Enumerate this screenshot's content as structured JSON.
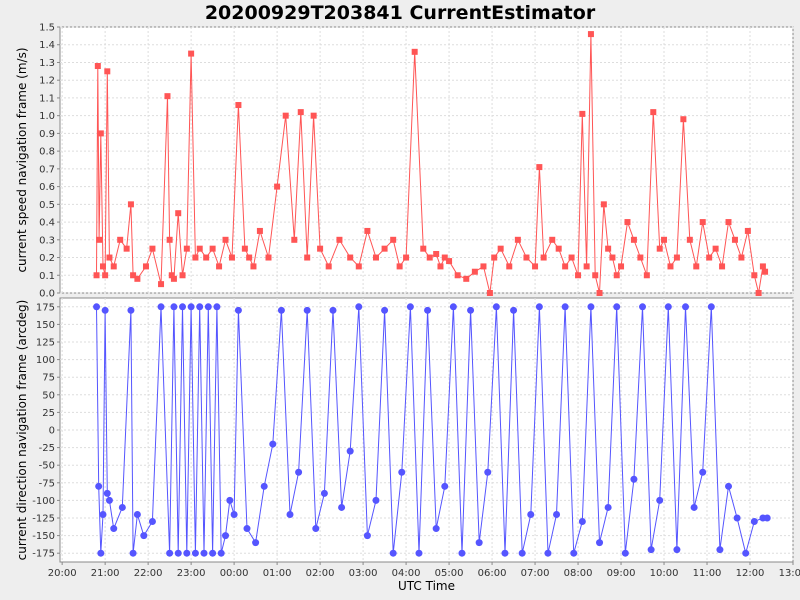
{
  "chart_data": {
    "title": "20200929T203841 CurrentEstimator",
    "type": "line",
    "xlabel": "UTC Time",
    "x_ticks": [
      "20:00",
      "21:00",
      "22:00",
      "23:00",
      "00:00",
      "01:00",
      "02:00",
      "03:00",
      "04:00",
      "05:00",
      "06:00",
      "07:00",
      "08:00",
      "09:00",
      "10:00",
      "11:00",
      "12:00",
      "13:00"
    ],
    "grid": true,
    "panels": [
      {
        "name": "speed",
        "ylabel": "current speed navigation frame (m/s)",
        "ylim": [
          0.0,
          1.5
        ],
        "y_ticks": [
          "0.0",
          "0.1",
          "0.2",
          "0.3",
          "0.4",
          "0.5",
          "0.6",
          "0.7",
          "0.8",
          "0.9",
          "1.0",
          "1.1",
          "1.2",
          "1.3",
          "1.4",
          "1.5"
        ],
        "color": "#ff5555",
        "marker": "square",
        "x_hours": [
          20.8,
          20.83,
          20.86,
          20.9,
          20.95,
          21.0,
          21.05,
          21.1,
          21.2,
          21.35,
          21.5,
          21.6,
          21.65,
          21.75,
          21.95,
          22.1,
          22.3,
          22.45,
          22.5,
          22.55,
          22.6,
          22.7,
          22.8,
          22.9,
          23.0,
          23.1,
          23.2,
          23.35,
          23.5,
          23.65,
          23.8,
          23.95,
          24.1,
          24.25,
          24.35,
          24.45,
          24.6,
          24.8,
          25.0,
          25.2,
          25.4,
          25.55,
          25.7,
          25.85,
          26.0,
          26.2,
          26.45,
          26.7,
          26.9,
          27.1,
          27.3,
          27.5,
          27.7,
          27.85,
          28.0,
          28.2,
          28.4,
          28.55,
          28.7,
          28.8,
          28.9,
          29.0,
          29.2,
          29.4,
          29.6,
          29.8,
          29.95,
          30.05,
          30.2,
          30.4,
          30.6,
          30.8,
          31.0,
          31.1,
          31.2,
          31.4,
          31.55,
          31.7,
          31.85,
          32.0,
          32.1,
          32.2,
          32.3,
          32.4,
          32.5,
          32.6,
          32.7,
          32.8,
          32.9,
          33.0,
          33.15,
          33.3,
          33.45,
          33.6,
          33.75,
          33.9,
          34.0,
          34.15,
          34.3,
          34.45,
          34.6,
          34.75,
          34.9,
          35.05,
          35.2,
          35.35,
          35.5,
          35.65,
          35.8,
          35.95,
          36.1,
          36.2,
          36.3,
          36.35
        ],
        "values": [
          0.1,
          1.28,
          0.3,
          0.9,
          0.15,
          0.1,
          1.25,
          0.2,
          0.15,
          0.3,
          0.25,
          0.5,
          0.1,
          0.08,
          0.15,
          0.25,
          0.05,
          1.11,
          0.3,
          0.1,
          0.08,
          0.45,
          0.1,
          0.25,
          1.35,
          0.2,
          0.25,
          0.2,
          0.25,
          0.15,
          0.3,
          0.2,
          1.06,
          0.25,
          0.2,
          0.15,
          0.35,
          0.2,
          0.6,
          1.0,
          0.3,
          1.02,
          0.2,
          1.0,
          0.25,
          0.15,
          0.3,
          0.2,
          0.15,
          0.35,
          0.2,
          0.25,
          0.3,
          0.15,
          0.2,
          1.36,
          0.25,
          0.2,
          0.22,
          0.15,
          0.2,
          0.18,
          0.1,
          0.08,
          0.12,
          0.15,
          0.0,
          0.2,
          0.25,
          0.15,
          0.3,
          0.2,
          0.15,
          0.71,
          0.2,
          0.3,
          0.25,
          0.15,
          0.2,
          0.1,
          1.01,
          0.15,
          1.46,
          0.1,
          0.0,
          0.5,
          0.25,
          0.2,
          0.1,
          0.15,
          0.4,
          0.3,
          0.2,
          0.1,
          1.02,
          0.25,
          0.3,
          0.15,
          0.2,
          0.98,
          0.3,
          0.15,
          0.4,
          0.2,
          0.25,
          0.15,
          0.4,
          0.3,
          0.2,
          0.35,
          0.1,
          0.0,
          0.15,
          0.12
        ]
      },
      {
        "name": "direction",
        "ylabel": "current direction navigation frame (arcdeg)",
        "ylim": [
          -187.5,
          187.5
        ],
        "y_ticks": [
          "-175",
          "-150",
          "-125",
          "-100",
          "-75",
          "-50",
          "-25",
          "0",
          "25",
          "50",
          "75",
          "100",
          "125",
          "150",
          "175"
        ],
        "color": "#5555ff",
        "marker": "circle",
        "x_hours": [
          20.8,
          20.85,
          20.9,
          20.95,
          21.0,
          21.05,
          21.1,
          21.2,
          21.4,
          21.6,
          21.65,
          21.75,
          21.9,
          22.1,
          22.3,
          22.5,
          22.6,
          22.7,
          22.8,
          22.9,
          23.0,
          23.1,
          23.2,
          23.3,
          23.4,
          23.5,
          23.6,
          23.7,
          23.8,
          23.9,
          24.0,
          24.1,
          24.3,
          24.5,
          24.7,
          24.9,
          25.1,
          25.3,
          25.5,
          25.7,
          25.9,
          26.1,
          26.3,
          26.5,
          26.7,
          26.9,
          27.1,
          27.3,
          27.5,
          27.7,
          27.9,
          28.1,
          28.3,
          28.5,
          28.7,
          28.9,
          29.1,
          29.3,
          29.5,
          29.7,
          29.9,
          30.1,
          30.3,
          30.5,
          30.7,
          30.9,
          31.1,
          31.3,
          31.5,
          31.7,
          31.9,
          32.1,
          32.3,
          32.5,
          32.7,
          32.9,
          33.1,
          33.3,
          33.5,
          33.7,
          33.9,
          34.1,
          34.3,
          34.5,
          34.7,
          34.9,
          35.1,
          35.3,
          35.5,
          35.7,
          35.9,
          36.1,
          36.3,
          36.4
        ],
        "values": [
          175,
          -80,
          -175,
          -120,
          170,
          -90,
          -100,
          -140,
          -110,
          170,
          -175,
          -120,
          -150,
          -130,
          175,
          -175,
          175,
          -175,
          175,
          -175,
          175,
          -175,
          175,
          -175,
          175,
          -175,
          175,
          -175,
          -150,
          -100,
          -120,
          170,
          -140,
          -160,
          -80,
          -20,
          170,
          -120,
          -60,
          170,
          -140,
          -90,
          170,
          -110,
          -30,
          175,
          -150,
          -100,
          170,
          -175,
          -60,
          175,
          -175,
          170,
          -140,
          -80,
          175,
          -175,
          170,
          -160,
          -60,
          175,
          -175,
          170,
          -175,
          -120,
          175,
          -175,
          -120,
          175,
          -175,
          -130,
          175,
          -160,
          -110,
          175,
          -175,
          -70,
          175,
          -170,
          -100,
          175,
          -170,
          175,
          -110,
          -60,
          175,
          -170,
          -80,
          -125,
          -175,
          -130,
          -125,
          -125
        ]
      }
    ]
  }
}
